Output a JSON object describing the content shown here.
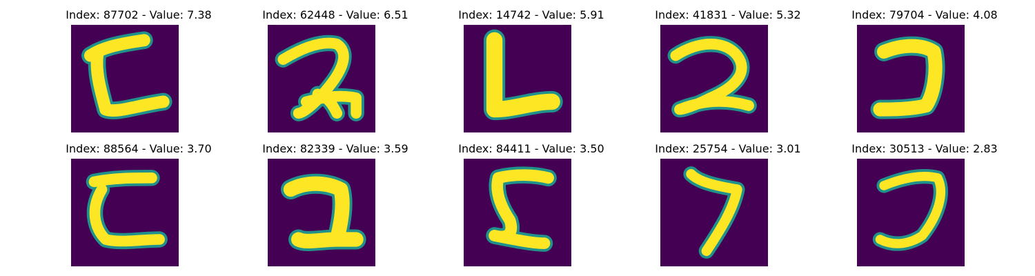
{
  "colors": {
    "background_dark": "#440154",
    "stroke_mid": "#21918c",
    "stroke_bright": "#fde725"
  },
  "panels": [
    {
      "title": "Index: 87702 - Value: 7.38",
      "glyph": "stroke shaped like a mirrored C with a short top bar"
    },
    {
      "title": "Index: 62448 - Value: 6.51",
      "glyph": "stroke shaped like a cursive 2"
    },
    {
      "title": "Index: 14742 - Value: 5.91",
      "glyph": "stroke shaped like an L"
    },
    {
      "title": "Index: 41831 - Value: 5.32",
      "glyph": "stroke shaped like a 2"
    },
    {
      "title": "Index: 79704 - Value: 4.08",
      "glyph": "stroke shaped like a backwards C"
    },
    {
      "title": "Index: 88564 - Value: 3.70",
      "glyph": "stroke shaped like a C with a top bar"
    },
    {
      "title": "Index: 82339 - Value: 3.59",
      "glyph": "stroke shaped like a bold 2"
    },
    {
      "title": "Index: 84411 - Value: 3.50",
      "glyph": "stroke shaped like a 5 / S"
    },
    {
      "title": "Index: 25754 - Value: 3.01",
      "glyph": "stroke shaped like a 7"
    },
    {
      "title": "Index: 30513 - Value: 2.83",
      "glyph": "stroke shaped like a J / backwards C"
    }
  ]
}
